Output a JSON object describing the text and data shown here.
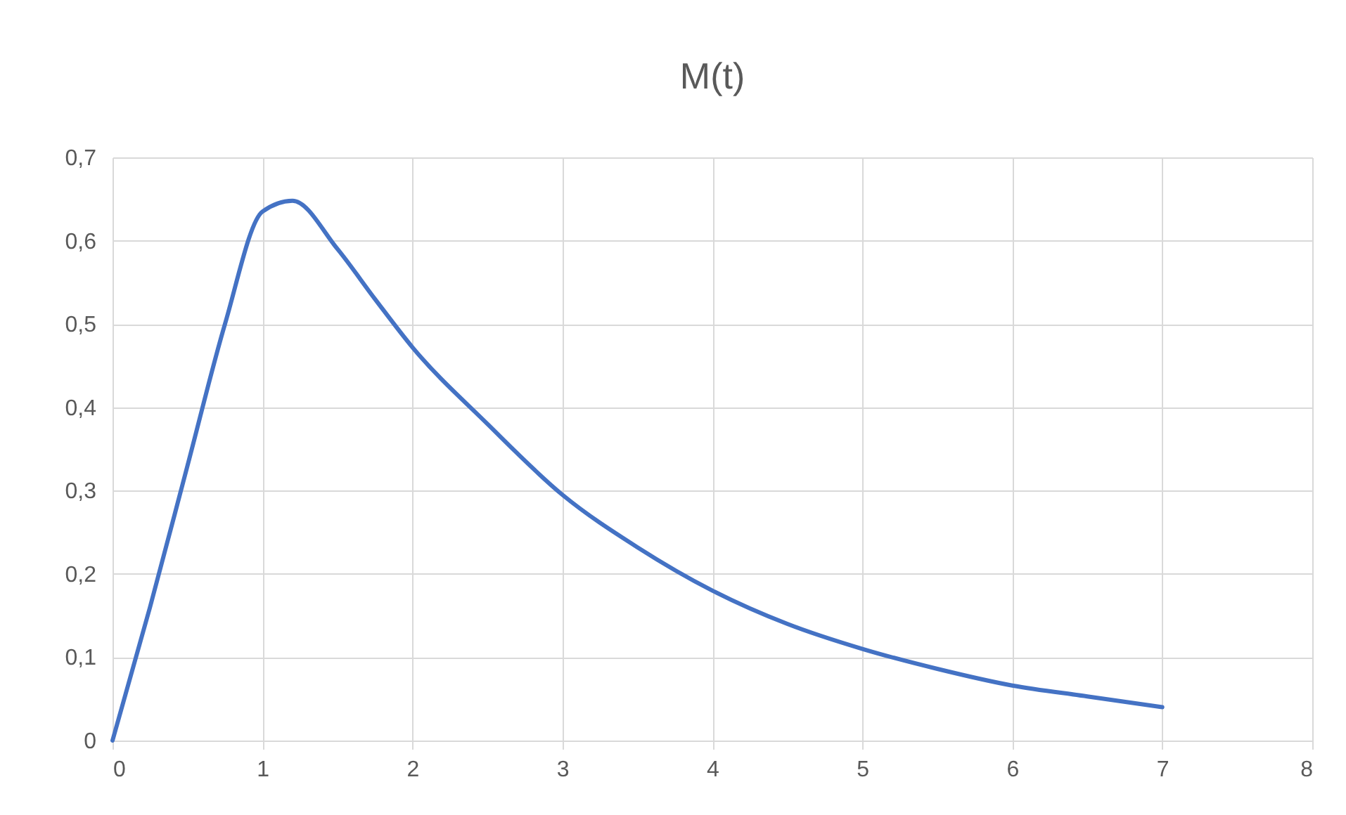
{
  "chart_data": {
    "type": "line",
    "title": "M(t)",
    "x": [
      0,
      0.25,
      0.5,
      0.75,
      1,
      1.2,
      1.5,
      1.75,
      2,
      2.5,
      3,
      3.5,
      4,
      4.5,
      5,
      5.5,
      6,
      6.5,
      7
    ],
    "series": [
      {
        "color": "#4472c4",
        "values": [
          0,
          0.16,
          0.33,
          0.5,
          0.635,
          0.648,
          0.59,
          0.53,
          0.472,
          0.38,
          0.295,
          0.232,
          0.18,
          0.14,
          0.11,
          0.086,
          0.066,
          0.053,
          0.04
        ]
      }
    ],
    "xlim": [
      0,
      8
    ],
    "xticks": [
      0,
      1,
      2,
      3,
      4,
      5,
      6,
      7,
      8
    ],
    "ylim": [
      0,
      0.7
    ],
    "yticks": [
      0,
      {
        "value": 0.1,
        "label": "0,1"
      },
      {
        "value": 0.2,
        "label": "0,2"
      },
      {
        "value": 0.3,
        "label": "0,3"
      },
      {
        "value": 0.4,
        "label": "0,4"
      },
      {
        "value": 0.5,
        "label": "0,5"
      },
      {
        "value": 0.6,
        "label": "0,6"
      },
      {
        "value": 0.7,
        "label": "0,7"
      }
    ],
    "grid": true,
    "marker": "none",
    "line_style": "solid"
  }
}
